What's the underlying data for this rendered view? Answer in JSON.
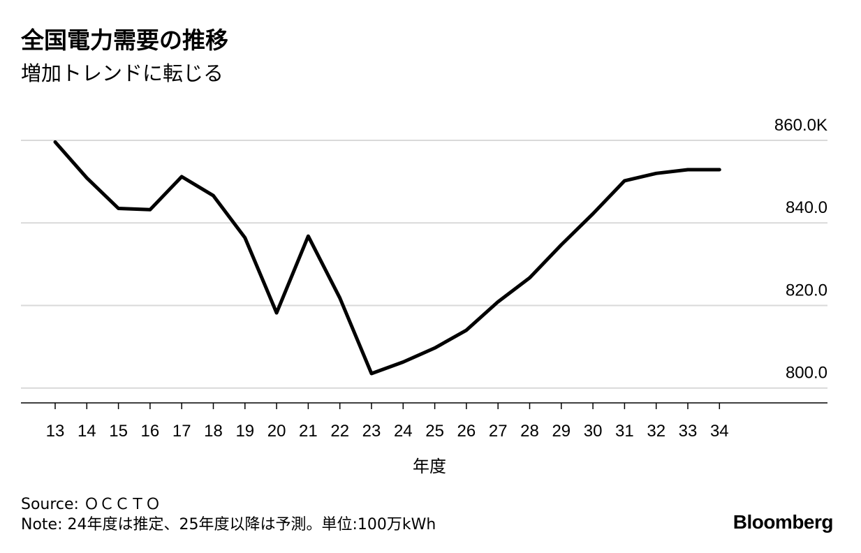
{
  "header": {
    "title": "全国電力需要の推移",
    "subtitle": "増加トレンドに転じる"
  },
  "chart_data": {
    "type": "line",
    "title": "全国電力需要の推移",
    "subtitle": "増加トレンドに転じる",
    "xlabel": "年度",
    "ylabel": "",
    "categories": [
      "13",
      "14",
      "15",
      "16",
      "17",
      "18",
      "19",
      "20",
      "21",
      "22",
      "23",
      "24",
      "25",
      "26",
      "27",
      "28",
      "29",
      "30",
      "31",
      "32",
      "33",
      "34"
    ],
    "series": [
      {
        "name": "全国電力需要",
        "values": [
          859.6,
          850.9,
          843.5,
          843.2,
          851.2,
          846.6,
          836.4,
          818.2,
          836.8,
          821.8,
          803.5,
          806.3,
          809.7,
          814.0,
          820.9,
          826.7,
          834.7,
          842.2,
          850.2,
          852.0,
          852.9,
          852.9
        ]
      }
    ],
    "ylim": [
      796.4,
      860.0
    ],
    "yticks": [
      800,
      820,
      840,
      860
    ],
    "ytick_labels": [
      "800.0",
      "820.0",
      "840.0",
      "860.0K"
    ],
    "grid": true,
    "y_axis_side": "right",
    "line_color": "#000000",
    "grid_color": "#d9d9d9",
    "axis_color": "#000000"
  },
  "footer": {
    "source": "Source: ＯＣＣＴＯ",
    "note": "Note: 24年度は推定、25年度以降は予測。単位:100万kWh",
    "brand": "Bloomberg"
  }
}
